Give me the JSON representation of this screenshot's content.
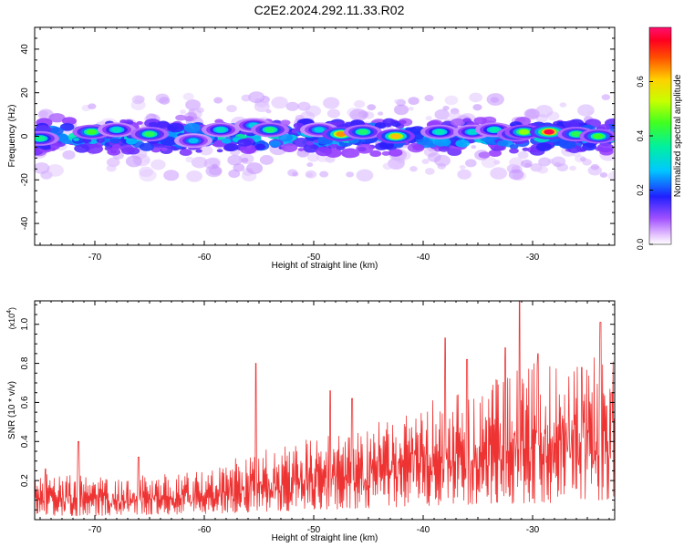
{
  "title": "C2E2.2024.292.11.33.R02",
  "chart_data": [
    {
      "type": "heatmap",
      "title": "C2E2.2024.292.11.33.R02",
      "xlabel": "Height of straight line (km)",
      "ylabel": "Frequency (Hz)",
      "xlim": [
        -75.5,
        -22.5
      ],
      "ylim": [
        -50,
        50
      ],
      "xticks": [
        -70,
        -60,
        -50,
        -40,
        -30
      ],
      "xtick_labels": [
        "-70",
        "-60",
        "-50",
        "-40",
        "-30"
      ],
      "yticks": [
        -40,
        -20,
        0,
        20,
        40
      ],
      "ytick_labels": [
        "-40",
        "-20",
        "0",
        "20",
        "40"
      ],
      "band_center_hz": 0,
      "band_halfwidth_hz": 8,
      "hotspots": [
        {
          "x": -75.0,
          "y": -1,
          "amp": 0.38
        },
        {
          "x": -70.3,
          "y": 2,
          "amp": 0.45
        },
        {
          "x": -68.0,
          "y": 3,
          "amp": 0.33
        },
        {
          "x": -65.0,
          "y": 1,
          "amp": 0.42
        },
        {
          "x": -61.0,
          "y": -2,
          "amp": 0.28
        },
        {
          "x": -58.5,
          "y": 3,
          "amp": 0.33
        },
        {
          "x": -55.5,
          "y": 5,
          "amp": 0.3
        },
        {
          "x": -54.0,
          "y": 3,
          "amp": 0.4
        },
        {
          "x": -49.5,
          "y": 3,
          "amp": 0.3
        },
        {
          "x": -47.5,
          "y": 1,
          "amp": 0.65
        },
        {
          "x": -45.5,
          "y": 2,
          "amp": 0.4
        },
        {
          "x": -42.5,
          "y": 0,
          "amp": 0.62
        },
        {
          "x": -38.5,
          "y": 2,
          "amp": 0.35
        },
        {
          "x": -35.5,
          "y": 2,
          "amp": 0.32
        },
        {
          "x": -33.5,
          "y": 3,
          "amp": 0.35
        },
        {
          "x": -31.5,
          "y": 1,
          "amp": 0.45
        },
        {
          "x": -30.8,
          "y": 2,
          "amp": 0.5
        },
        {
          "x": -28.5,
          "y": 2,
          "amp": 0.78
        },
        {
          "x": -26.0,
          "y": 1,
          "amp": 0.42
        },
        {
          "x": -24.0,
          "y": 0,
          "amp": 0.45
        }
      ]
    },
    {
      "type": "line",
      "xlabel": "Height of straight line (km)",
      "ylabel": "SNR (10 * v/v)",
      "y_multiplier": "(x10",
      "y_multiplier_exp": "4",
      "y_multiplier_close": ")",
      "xlim": [
        -75.5,
        -22.5
      ],
      "ylim": [
        0,
        1.12
      ],
      "xticks": [
        -70,
        -60,
        -50,
        -40,
        -30
      ],
      "xtick_labels": [
        "-70",
        "-60",
        "-50",
        "-40",
        "-30"
      ],
      "yticks": [
        0.2,
        0.4,
        0.6,
        0.8,
        1.0
      ],
      "ytick_labels": [
        "0.2",
        "0.4",
        "0.6",
        "0.8",
        "1.0"
      ],
      "series": [
        {
          "name": "SNR",
          "color": "#ee3333",
          "envelope_x": [
            -75.5,
            -70,
            -60,
            -55,
            -50,
            -45,
            -40,
            -35,
            -30,
            -25,
            -22.5
          ],
          "envelope_min": [
            0.02,
            0.02,
            0.03,
            0.04,
            0.05,
            0.06,
            0.07,
            0.08,
            0.08,
            0.1,
            0.1
          ],
          "envelope_max": [
            0.24,
            0.22,
            0.25,
            0.36,
            0.42,
            0.48,
            0.6,
            0.7,
            0.8,
            0.85,
            0.9
          ],
          "peaks": [
            {
              "x": -74.5,
              "y": 0.26
            },
            {
              "x": -71.5,
              "y": 0.4
            },
            {
              "x": -66.0,
              "y": 0.32
            },
            {
              "x": -55.3,
              "y": 0.8
            },
            {
              "x": -48.5,
              "y": 0.66
            },
            {
              "x": -46.5,
              "y": 0.62
            },
            {
              "x": -38.0,
              "y": 0.93
            },
            {
              "x": -36.0,
              "y": 0.82
            },
            {
              "x": -32.5,
              "y": 0.88
            },
            {
              "x": -31.2,
              "y": 1.12
            },
            {
              "x": -29.5,
              "y": 0.85
            },
            {
              "x": -25.5,
              "y": 0.78
            },
            {
              "x": -23.8,
              "y": 1.01
            },
            {
              "x": -22.8,
              "y": 0.65
            }
          ]
        }
      ]
    }
  ],
  "colorbar": {
    "label": "Normalized spectral amplitude",
    "range": [
      0,
      0.8
    ],
    "ticks": [
      0.0,
      0.2,
      0.4,
      0.6
    ],
    "tick_labels": [
      "0.0",
      "0.2",
      "0.4",
      "0.6"
    ]
  }
}
